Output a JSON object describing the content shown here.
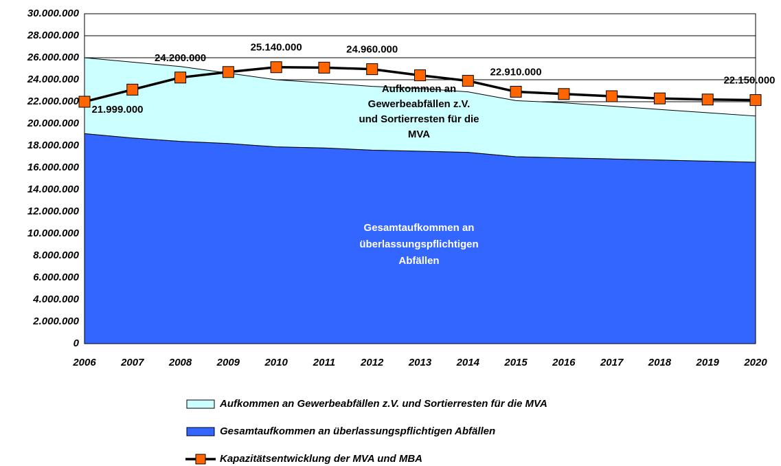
{
  "chart_data": {
    "type": "area",
    "categories": [
      "2006",
      "2007",
      "2008",
      "2009",
      "2010",
      "2011",
      "2012",
      "2013",
      "2014",
      "2015",
      "2016",
      "2017",
      "2018",
      "2019",
      "2020"
    ],
    "series": [
      {
        "name": "Aufkommen an Gewerbeabfällen z.V. und Sortierresten für die MVA",
        "type": "area",
        "color": "#ccffff",
        "values": [
          6900000,
          6900000,
          6800000,
          6400000,
          6100000,
          5900000,
          5800000,
          5700000,
          5500000,
          5100000,
          5000000,
          4800000,
          4600000,
          4400000,
          4200000
        ]
      },
      {
        "name": "Gesamtaufkommen an überlassungspflichtigen Abfällen",
        "type": "area",
        "color": "#3366ff",
        "values": [
          19100000,
          18700000,
          18400000,
          18200000,
          17900000,
          17800000,
          17600000,
          17500000,
          17400000,
          17000000,
          16900000,
          16800000,
          16700000,
          16600000,
          16500000
        ]
      },
      {
        "name": "Kapazitätsentwicklung der MVA und MBA",
        "type": "line",
        "color": "#000000",
        "marker_color": "#ff6600",
        "values": [
          21999000,
          23100000,
          24200000,
          24700000,
          25140000,
          25100000,
          24960000,
          24400000,
          23900000,
          22910000,
          22700000,
          22500000,
          22300000,
          22200000,
          22150000
        ],
        "value_labels": [
          "21.999.000",
          null,
          "24.200.000",
          null,
          "25.140.000",
          null,
          "24.960.000",
          null,
          null,
          "22.910.000",
          null,
          null,
          null,
          null,
          "22.150.000"
        ]
      }
    ],
    "annotations": [
      {
        "series": 0,
        "lines": [
          "Aufkommen an",
          "Gewerbeabfällen z.V.",
          "und Sortierresten für die",
          "MVA"
        ]
      },
      {
        "series": 1,
        "lines": [
          "Gesamtaufkommen an",
          "überlassungspflichtigen",
          "Abfällen"
        ]
      }
    ],
    "ylim": [
      0,
      30000000
    ],
    "yticks": [
      0,
      {
        "value": 2000000,
        "label": "2.000.000"
      },
      {
        "value": 4000000,
        "label": "4.000.000"
      },
      {
        "value": 6000000,
        "label": "6.000.000"
      },
      {
        "value": 8000000,
        "label": "8.000.000"
      },
      {
        "value": 10000000,
        "label": "10.000.000"
      },
      {
        "value": 12000000,
        "label": "12.000.000"
      },
      {
        "value": 14000000,
        "label": "14.000.000"
      },
      {
        "value": 16000000,
        "label": "16.000.000"
      },
      {
        "value": 18000000,
        "label": "18.000.000"
      },
      {
        "value": 20000000,
        "label": "20.000.000"
      },
      {
        "value": 22000000,
        "label": "22.000.000"
      },
      {
        "value": 24000000,
        "label": "24.000.000"
      },
      {
        "value": 26000000,
        "label": "26.000.000"
      },
      {
        "value": 28000000,
        "label": "28.000.000"
      },
      {
        "value": 30000000,
        "label": "30.000.000"
      }
    ],
    "grid": true,
    "legend": "bottom"
  }
}
